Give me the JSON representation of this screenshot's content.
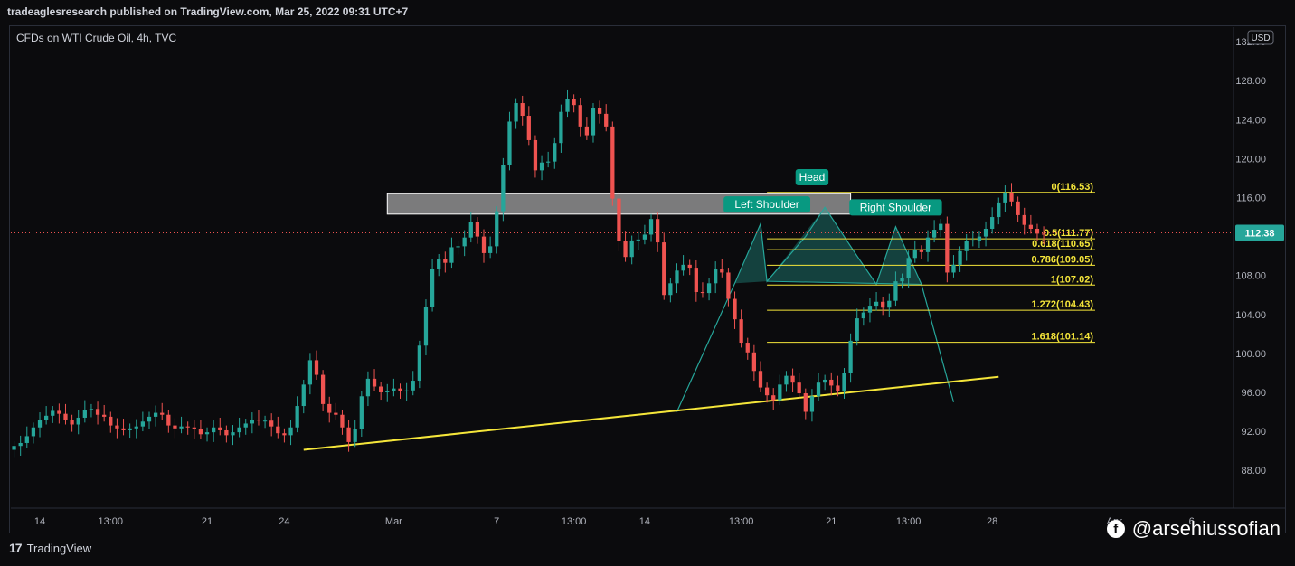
{
  "header": {
    "published": "tradeaglesresearch published on TradingView.com, Mar 25, 2022 09:31 UTC+7"
  },
  "chart_data": {
    "type": "candlestick",
    "title": "CFDs on WTI Crude Oil, 4h, TVC",
    "currency": "USD",
    "current_price": "112.38",
    "ylim": [
      84.3,
      133.5
    ],
    "y_ticks": [
      "88.00",
      "92.00",
      "96.00",
      "100.00",
      "104.00",
      "108.00",
      "112.00",
      "116.00",
      "120.00",
      "124.00",
      "128.00",
      "132.00"
    ],
    "y_tick_values": [
      88,
      92,
      96,
      100,
      104,
      108,
      112,
      116,
      120,
      124,
      128,
      132
    ],
    "x_ticks": [
      "14",
      "13:00",
      "21",
      "24",
      "Mar",
      "7",
      "13:00",
      "14",
      "13:00",
      "21",
      "13:00",
      "28",
      "Apr",
      "6"
    ],
    "x_tick_bars": [
      4,
      15,
      30,
      42,
      59,
      75,
      87,
      98,
      113,
      127,
      139,
      152,
      171,
      183
    ],
    "bar_count": 190,
    "closes": [
      90.5,
      90.8,
      91.5,
      92.4,
      93.2,
      93.6,
      94.1,
      93.8,
      93.2,
      92.7,
      93.4,
      94.2,
      94.3,
      93.7,
      93.5,
      92.6,
      92.3,
      92.1,
      92.3,
      92.5,
      93.0,
      93.5,
      93.9,
      93.7,
      92.6,
      92.3,
      92.5,
      92.4,
      92.2,
      91.7,
      91.9,
      92.4,
      92.1,
      91.6,
      91.9,
      92.4,
      92.8,
      93.2,
      93.1,
      93.1,
      92.5,
      91.8,
      91.6,
      92.4,
      94.6,
      96.8,
      99.3,
      97.8,
      94.8,
      93.9,
      93.7,
      92.4,
      90.9,
      92.2,
      95.6,
      97.4,
      96.6,
      96.0,
      96.1,
      96.4,
      96.1,
      96.2,
      97.2,
      100.8,
      104.8,
      108.7,
      109.7,
      109.3,
      110.9,
      111.0,
      111.9,
      113.5,
      112.0,
      110.3,
      111.0,
      114.6,
      119.3,
      123.8,
      125.7,
      124.4,
      121.9,
      118.8,
      119.6,
      119.7,
      121.6,
      124.8,
      126.1,
      125.5,
      123.3,
      122.4,
      125.2,
      124.6,
      123.3,
      115.9,
      111.5,
      109.9,
      111.6,
      111.7,
      112.2,
      113.8,
      111.4,
      106.0,
      107.2,
      108.5,
      109.1,
      108.8,
      106.3,
      106.2,
      107.2,
      108.7,
      108.3,
      105.6,
      103.5,
      101.1,
      100.1,
      98.2,
      96.5,
      95.7,
      95.2,
      96.8,
      97.7,
      97.0,
      95.9,
      94.0,
      95.6,
      97.0,
      97.3,
      96.7,
      96.1,
      98.0,
      101.3,
      103.6,
      104.2,
      104.9,
      105.3,
      104.7,
      105.4,
      107.4,
      107.7,
      109.8,
      110.6,
      110.4,
      111.9,
      112.7,
      113.3,
      108.3,
      109.1,
      110.5,
      111.5,
      111.6,
      112.0,
      112.8,
      114.0,
      115.5,
      116.5,
      115.6,
      114.2,
      113.2,
      112.8,
      112.3,
      112.2
    ],
    "title_text_color": "#d1d4dc",
    "colors": {
      "up": "#26a69a",
      "down": "#ef5350",
      "trendline": "#f5e63a",
      "fib": "#f5e63a",
      "pattern": "#26a69a",
      "zone_fill": "#d9d9d9",
      "label_bg": "#089981",
      "price_badge": "#26a69a"
    },
    "zone": {
      "from_bar": 58,
      "to_bar": 130,
      "low": 114.3,
      "high": 116.4
    },
    "trendline": {
      "start_bar": 45,
      "start_price": 90.1,
      "end_bar": 153,
      "end_price": 97.6
    },
    "fibonacci": {
      "start_bar": 117,
      "end_bar": 168,
      "levels": [
        {
          "label": "0(116.53)",
          "value": 116.53
        },
        {
          "label": "0.5(111.77)",
          "value": 111.77
        },
        {
          "label": "0.618(110.65)",
          "value": 110.65
        },
        {
          "label": "0.786(109.05)",
          "value": 109.05
        },
        {
          "label": "1(107.02)",
          "value": 107.02
        },
        {
          "label": "1.272(104.43)",
          "value": 104.43
        },
        {
          "label": "1.618(101.14)",
          "value": 101.14
        }
      ]
    },
    "pattern_path": [
      {
        "bar": 103,
        "price": 94.0
      },
      {
        "bar": 112,
        "price": 107.2
      },
      {
        "bar": 116,
        "price": 113.3
      },
      {
        "bar": 117,
        "price": 107.4
      },
      {
        "bar": 123,
        "price": 112.0
      },
      {
        "bar": 126,
        "price": 115.0
      },
      {
        "bar": 131,
        "price": 110.0
      },
      {
        "bar": 134,
        "price": 107.1
      },
      {
        "bar": 137,
        "price": 113.0
      },
      {
        "bar": 141,
        "price": 107.1
      },
      {
        "bar": 146,
        "price": 95.0
      }
    ],
    "annotations": [
      {
        "text": "Head",
        "bar": 124,
        "price": 118.0
      },
      {
        "text": "Left Shoulder",
        "bar": 117,
        "price": 115.2
      },
      {
        "text": "Right Shoulder",
        "bar": 137,
        "price": 114.9
      }
    ]
  },
  "footer": {
    "brand": "TradingView",
    "social": "@arsehiussofian"
  }
}
